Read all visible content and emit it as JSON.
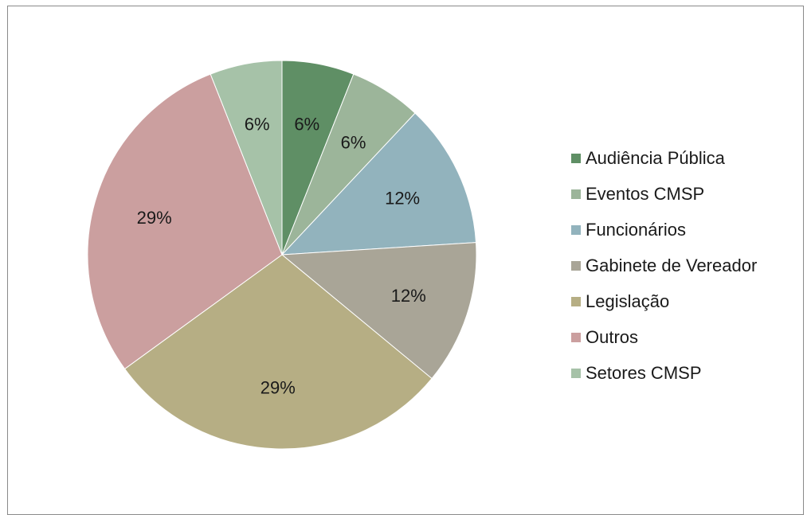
{
  "chart_data": {
    "type": "pie",
    "title": "",
    "categories": [
      "Audiência Pública",
      "Eventos CMSP",
      "Funcionários",
      "Gabinete de Vereador",
      "Legislação",
      "Outros",
      "Setores CMSP"
    ],
    "values": [
      6,
      6,
      12,
      12,
      29,
      29,
      6
    ],
    "data_labels": [
      "6%",
      "6%",
      "12%",
      "12%",
      "29%",
      "29%",
      "6%"
    ],
    "colors": [
      "#5f8f65",
      "#9cb59a",
      "#92b3bd",
      "#a9a597",
      "#b6ae84",
      "#cb9f9f",
      "#a6c2a8"
    ],
    "legend_position": "right"
  }
}
